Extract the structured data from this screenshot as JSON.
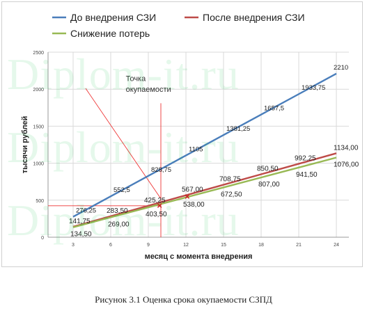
{
  "caption": "Рисунок 3.1 Оценка срока окупаемости СЗПД",
  "watermark": "Diplom-it.ru",
  "chart_data": {
    "type": "line",
    "title": "",
    "xlabel": "месяц с момента внедрения",
    "ylabel": "тысячи рублей",
    "x_ticks": [
      3,
      6,
      9,
      12,
      15,
      18,
      21,
      24
    ],
    "y_ticks": [
      0,
      500,
      1000,
      1500,
      2000,
      2500
    ],
    "xlim": [
      1,
      25
    ],
    "ylim": [
      0,
      2500
    ],
    "grid": true,
    "legend_position": "top",
    "series": [
      {
        "name": "До внедрения СЗИ",
        "color": "#4a7ebb",
        "x": [
          3,
          6,
          9,
          12,
          15,
          18,
          21,
          24
        ],
        "y": [
          276.25,
          552.5,
          828.75,
          1105,
          1381.25,
          1657.5,
          1933.75,
          2210
        ],
        "labels": [
          "276,25",
          "552,5",
          "828,75",
          "1105",
          "1381,25",
          "1657,5",
          "1933,75",
          "2210"
        ]
      },
      {
        "name": "После внедрения СЗИ",
        "color": "#be4b48",
        "x": [
          3,
          6,
          9,
          12,
          15,
          18,
          21,
          24
        ],
        "y": [
          141.75,
          283.5,
          425.25,
          567,
          708.75,
          850.5,
          992.25,
          1134
        ],
        "labels": [
          "141,75",
          "283,50",
          "425,25",
          "567,00",
          "708,75",
          "850,50",
          "992,25",
          "1134,00"
        ]
      },
      {
        "name": "Снижение потерь",
        "color": "#98b954",
        "x": [
          3,
          6,
          9,
          12,
          15,
          18,
          21,
          24
        ],
        "y": [
          134.5,
          269,
          403.5,
          538,
          672.5,
          807,
          941.5,
          1076
        ],
        "labels": [
          "134,50",
          "269,00",
          "403,50",
          "538,00",
          "672,50",
          "807,00",
          "941,50",
          "1076,00"
        ]
      }
    ],
    "annotations": [
      {
        "text": "Точка",
        "x": 7.2,
        "y": 2110
      },
      {
        "text": "окупаемости",
        "x": 7.2,
        "y": 1965
      }
    ],
    "markers": [
      {
        "symbol": "×",
        "x": 9.9,
        "y": 425,
        "color": "#cc2222"
      },
      {
        "symbol": "×",
        "x": 12.1,
        "y": 545,
        "color": "#cc2222"
      }
    ],
    "guide_lines": [
      {
        "color": "#ee3333",
        "x1": 4,
        "y1": 2010,
        "x2": 10,
        "y2": 520
      },
      {
        "color": "#ee3333",
        "x1": 10,
        "y1": 1810,
        "x2": 10,
        "y2": 0
      },
      {
        "color": "#ee3333",
        "x1": 1,
        "y1": 425,
        "x2": 10,
        "y2": 425
      }
    ]
  }
}
